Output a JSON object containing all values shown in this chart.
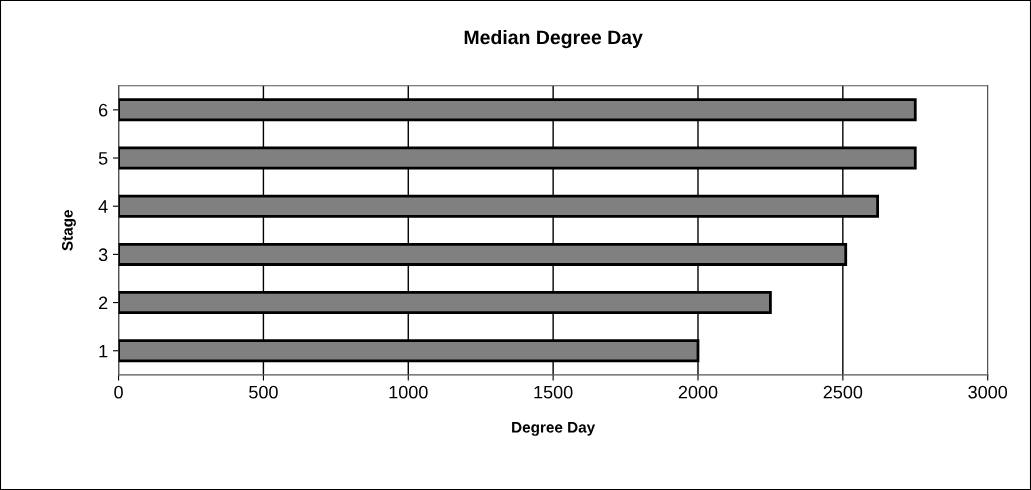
{
  "chart_data": {
    "type": "bar",
    "orientation": "horizontal",
    "title": "Median Degree Day",
    "xlabel": "Degree Day",
    "ylabel": "Stage",
    "categories": [
      "6",
      "5",
      "4",
      "3",
      "2",
      "1"
    ],
    "values": [
      2750,
      2750,
      2620,
      2510,
      2250,
      2000
    ],
    "color": "#808080",
    "xlim": [
      0,
      3000
    ],
    "xticks": [
      0,
      500,
      1000,
      1500,
      2000,
      2500,
      3000
    ],
    "grid": "x"
  }
}
